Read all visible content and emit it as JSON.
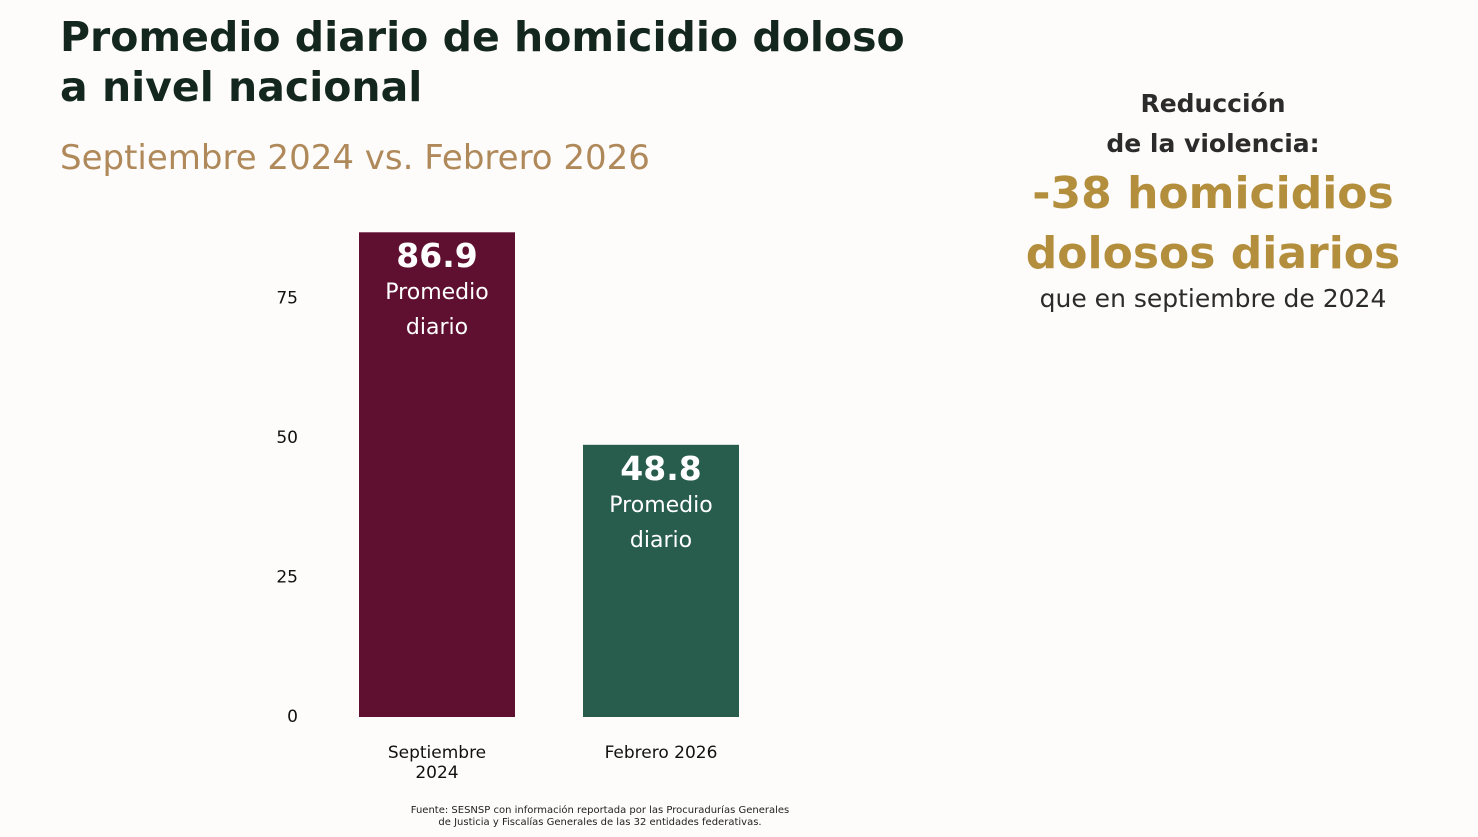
{
  "chart_data": {
    "type": "bar",
    "title": "Promedio diario de homicidio doloso a nivel nacional",
    "subtitle": "Septiembre 2024 vs. Febrero 2026",
    "categories": [
      "Septiembre 2024",
      "Febrero 2026"
    ],
    "values": [
      86.9,
      48.8
    ],
    "colors": [
      "#5f1030",
      "#285c4d"
    ],
    "data_label_text": "Promedio diario",
    "ylim": [
      0,
      90
    ],
    "yticks": [
      0,
      25,
      50,
      75
    ],
    "grid": false,
    "annotation": {
      "heading": [
        "Reducción",
        "de la violencia:"
      ],
      "highlight": [
        "-38 homicidios",
        "dolosos diarios"
      ],
      "note": "que en septiembre de 2024"
    },
    "source": [
      "Fuente: SESNSP con información reportada por las Procuradurías Generales",
      "de Justicia y Fiscalías Generales de las 32 entidades federativas."
    ]
  }
}
